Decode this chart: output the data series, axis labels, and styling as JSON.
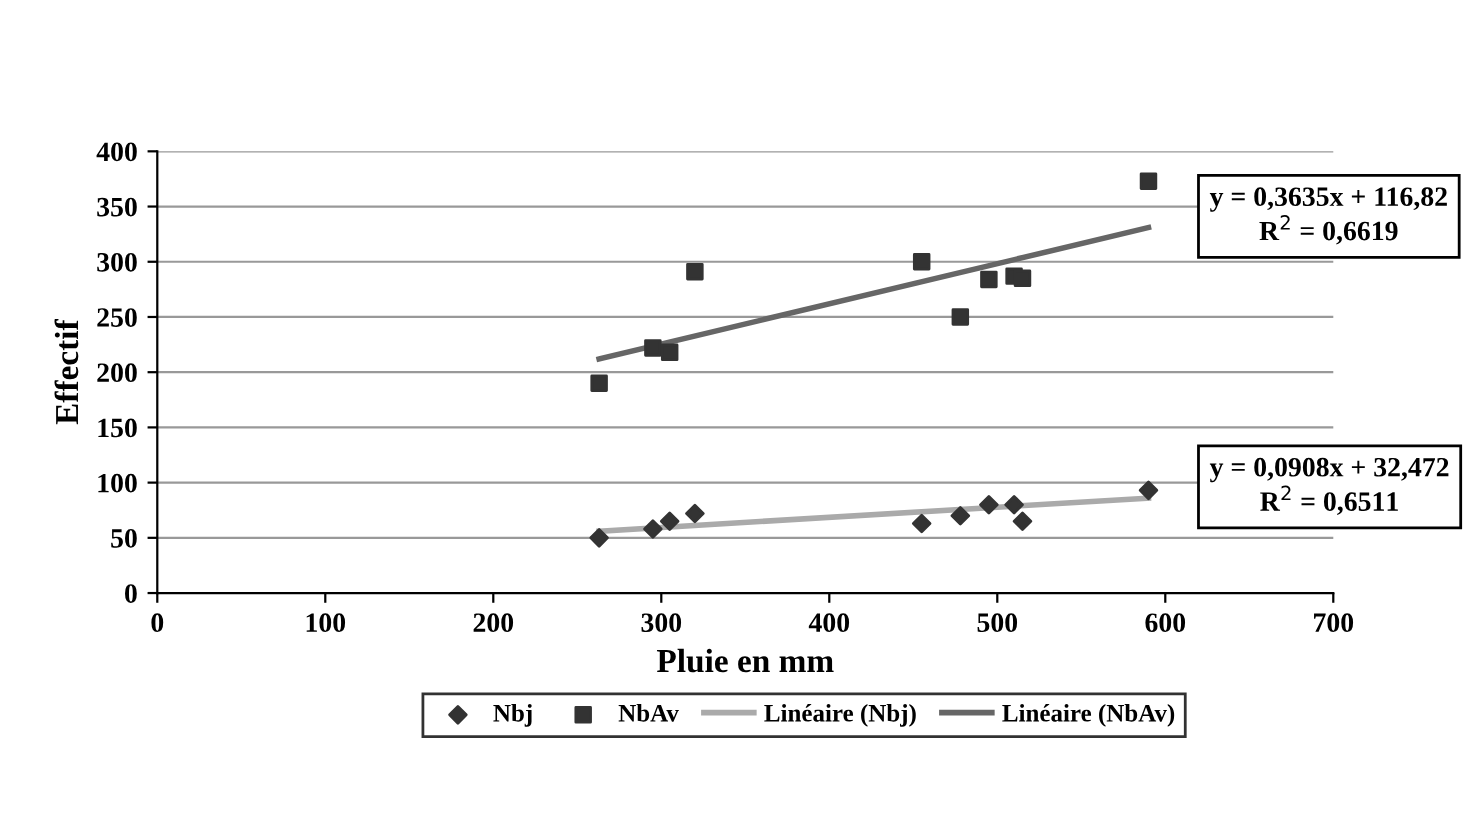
{
  "chart_data": {
    "type": "scatter",
    "xlabel": "Pluie en mm",
    "ylabel": "Effectif",
    "xlim": [
      0,
      700
    ],
    "xticks": [
      0,
      100,
      200,
      300,
      400,
      500,
      600,
      700
    ],
    "ylim": [
      0,
      400
    ],
    "yticks": [
      0,
      50,
      100,
      150,
      200,
      250,
      300,
      350,
      400
    ],
    "grid": "y",
    "legend": "bottom",
    "series": [
      {
        "name": "Nbj",
        "marker": "diamond",
        "color": "#333333",
        "x": [
          263,
          295,
          305,
          320,
          455,
          478,
          495,
          510,
          515,
          590
        ],
        "values": [
          50,
          58,
          65,
          72,
          63,
          70,
          80,
          80,
          65,
          93
        ]
      },
      {
        "name": "NbAv",
        "marker": "square",
        "color": "#333333",
        "x": [
          263,
          295,
          305,
          320,
          455,
          478,
          495,
          510,
          515,
          590
        ],
        "values": [
          190,
          222,
          218,
          291,
          300,
          250,
          284,
          287,
          285,
          373
        ]
      },
      {
        "name": "Linéaire (Nbj)",
        "type": "line",
        "color": "#aaaaaa",
        "x": [
          263,
          590
        ],
        "values": [
          56,
          86
        ]
      },
      {
        "name": "Linéaire (NbAv)",
        "type": "line",
        "color": "#666666",
        "x": [
          263,
          590
        ],
        "values": [
          212,
          331
        ]
      }
    ],
    "annotations": [
      {
        "text": "y = 0,3635x + 116,82\nR$^{2}$ = 0,6619",
        "x": 590,
        "y": 331
      },
      {
        "text": "y = 0,0908x + 32,472\nR$^{2}$ = 0,6511",
        "x": 590,
        "y": 86
      }
    ]
  }
}
